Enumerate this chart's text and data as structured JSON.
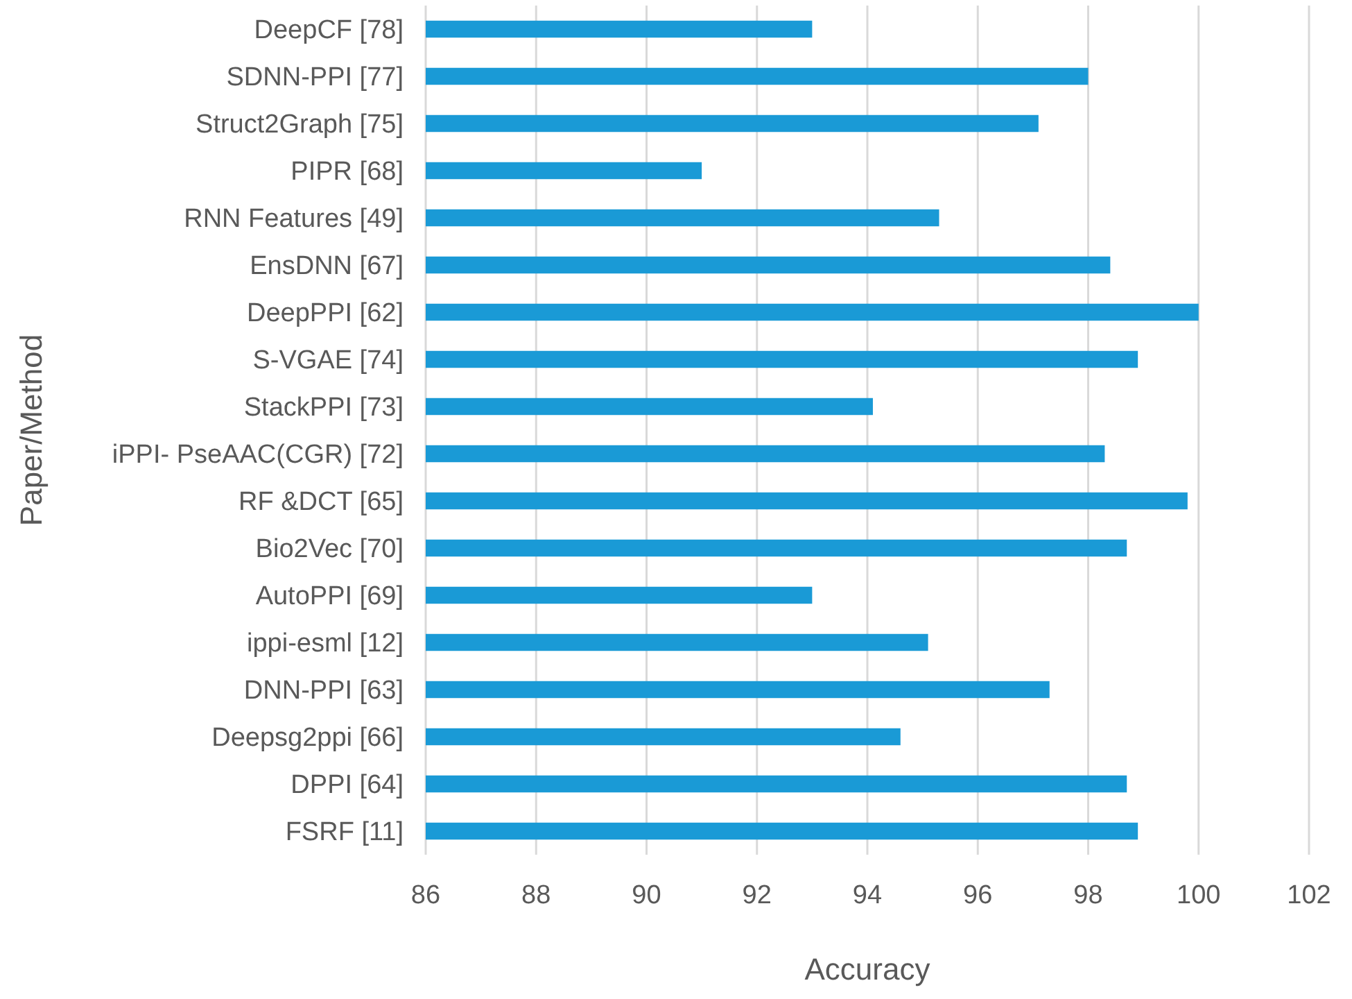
{
  "chart_data": {
    "type": "bar",
    "orientation": "horizontal",
    "xlabel": "Accuracy",
    "ylabel": "Paper/Method",
    "categories": [
      "DeepCF [78]",
      "SDNN-PPI [77]",
      "Struct2Graph [75]",
      "PIPR [68]",
      "RNN Features [49]",
      "EnsDNN [67]",
      "DeepPPI [62]",
      "S-VGAE [74]",
      "StackPPI [73]",
      "iPPI- PseAAC(CGR) [72]",
      "RF &DCT [65]",
      "Bio2Vec [70]",
      "AutoPPI [69]",
      "ippi-esml [12]",
      "DNN-PPI [63]",
      "Deepsg2ppi [66]",
      "DPPI [64]",
      "FSRF [11]"
    ],
    "values": [
      93.0,
      98.0,
      97.1,
      91.0,
      95.3,
      98.4,
      100.0,
      98.9,
      94.1,
      98.3,
      99.8,
      98.7,
      93.0,
      95.1,
      97.3,
      94.6,
      98.7,
      98.9
    ],
    "color": "#1a9ad6",
    "xlim": [
      86,
      102
    ],
    "xticks": [
      86,
      88,
      90,
      92,
      94,
      96,
      98,
      100,
      102
    ],
    "grid": "x"
  }
}
